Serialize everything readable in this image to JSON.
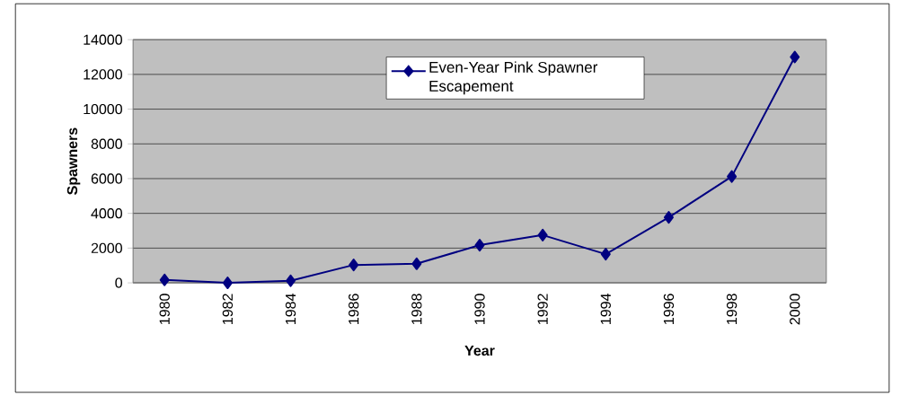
{
  "chart_data": {
    "type": "line",
    "xlabel": "Year",
    "ylabel": "Spawners",
    "categories": [
      "1980",
      "1982",
      "1984",
      "1986",
      "1988",
      "1990",
      "1992",
      "1994",
      "1996",
      "1998",
      "2000"
    ],
    "series": [
      {
        "name": "Even-Year Pink Spawner Escapement",
        "color": "#000080",
        "values": [
          170,
          0,
          120,
          1030,
          1100,
          2170,
          2750,
          1650,
          3770,
          6120,
          13000
        ]
      }
    ],
    "ylim": [
      0,
      14000
    ],
    "yticks": [
      0,
      2000,
      4000,
      6000,
      8000,
      10000,
      12000,
      14000
    ],
    "grid": "y",
    "legend": "top",
    "marker": "diamond",
    "line_style": "solid"
  }
}
